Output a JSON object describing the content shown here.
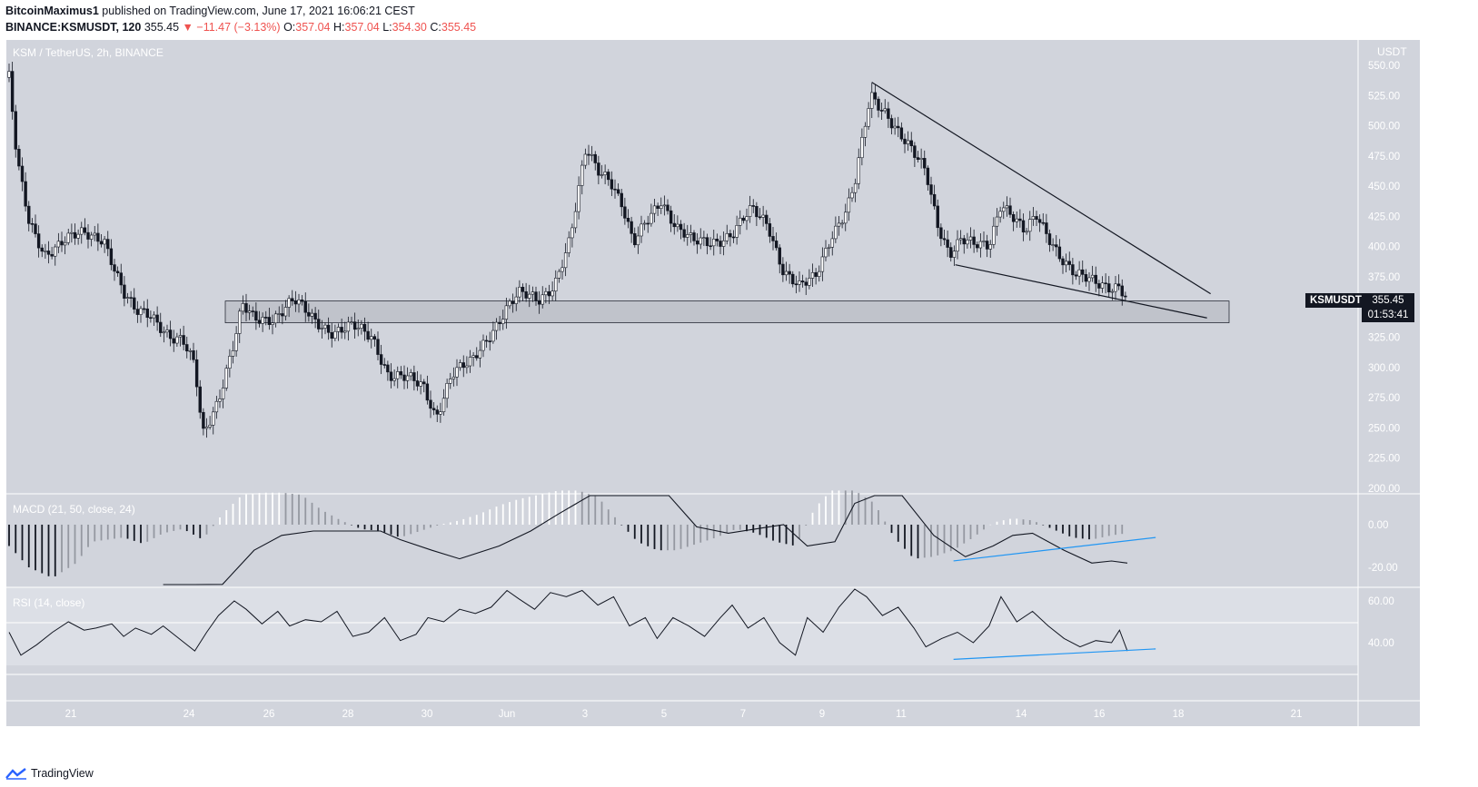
{
  "header": {
    "author": "BitcoinMaximus1",
    "published": " published on TradingView.com, June 17, 2021 16:06:21 CEST",
    "symbol": "BINANCE:KSMUSDT, 120",
    "last": "355.45",
    "change": "▼ −11.47 (−3.13%)",
    "o_label": "O:",
    "o_val": "357.04",
    "h_label": "H:",
    "h_val": "357.04",
    "l_label": "L:",
    "l_val": "354.30",
    "c_label": "C:",
    "c_val": "355.45"
  },
  "pane_labels": {
    "main": "KSM / TetherUS, 2h, BINANCE",
    "macd": "MACD (21, 50, close, 24)",
    "rsi": "RSI (14, close)"
  },
  "badges": {
    "ticker": "KSMUSDT",
    "price": "355.45",
    "countdown": "01:53:41"
  },
  "footer": {
    "brand": "TradingView"
  },
  "colors": {
    "background": "#d1d4dc",
    "candle": "#131722",
    "trendline": "#131722",
    "zone": "#b2b5be",
    "divergence": "#2196f3",
    "axis_text": "#ffffff",
    "price_change": "#ef5350"
  },
  "chart_data": [
    {
      "type": "candlestick",
      "title": "KSM / TetherUS, 2h, BINANCE",
      "ylabel": "USDT",
      "y_ticks": [
        550,
        525,
        500,
        475,
        450,
        425,
        400,
        375,
        350,
        325,
        300,
        275,
        250,
        225,
        200
      ],
      "x_ticks": [
        "21",
        "24",
        "26",
        "28",
        "30",
        "Jun",
        "3",
        "5",
        "7",
        "9",
        "11",
        "14",
        "16",
        "18",
        "21"
      ],
      "ylim": [
        195,
        555
      ],
      "close_path": {
        "x_days": [
          19.1,
          19.3,
          19.6,
          20.0,
          20.5,
          21.0,
          21.5,
          22.0,
          22.3,
          22.7,
          23.2,
          23.5,
          23.8,
          24.0,
          24.4,
          24.8,
          25.0,
          25.3,
          25.8,
          26.3,
          26.8,
          27.3,
          27.8,
          28.3,
          28.7,
          29.2,
          29.6,
          29.9,
          30.3,
          30.8,
          31.3,
          31.7,
          32.0,
          32.5,
          32.9,
          33.3,
          33.7,
          34.0,
          34.3,
          34.6,
          34.9,
          35.3,
          35.6,
          36.0,
          36.4,
          36.9,
          37.4,
          37.9,
          38.3,
          38.7,
          39.1,
          39.5,
          39.9,
          40.3,
          40.5,
          40.9,
          41.3,
          41.7,
          42.0,
          42.3,
          42.6,
          42.9,
          43.2,
          43.5,
          43.9,
          44.2,
          44.5,
          44.8,
          45.1,
          45.4,
          45.8,
          46.1,
          46.4,
          46.7,
          47.0,
          47.2,
          47.4
        ],
        "close": [
          540,
          470,
          420,
          395,
          405,
          410,
          408,
          360,
          345,
          345,
          325,
          320,
          300,
          245,
          275,
          320,
          350,
          340,
          342,
          355,
          340,
          330,
          333,
          325,
          295,
          290,
          283,
          260,
          295,
          303,
          330,
          350,
          360,
          356,
          370,
          405,
          480,
          465,
          458,
          435,
          400,
          425,
          440,
          415,
          403,
          405,
          410,
          430,
          420,
          380,
          365,
          375,
          410,
          430,
          450,
          525,
          512,
          490,
          475,
          462,
          420,
          395,
          405,
          400,
          402,
          438,
          425,
          410,
          425,
          410,
          388,
          375,
          372,
          370,
          368,
          368,
          355.45
        ]
      },
      "annotations": {
        "support_zone": [
          337,
          355
        ],
        "descending_resistance": {
          "from": [
            "Jun 10",
            536
          ],
          "to": [
            "Jun 18",
            361
          ]
        },
        "descending_support": {
          "from": [
            "Jun 12",
            385
          ],
          "to": [
            "Jun 18",
            341
          ]
        }
      },
      "last_price": 355.45
    },
    {
      "type": "bar",
      "title": "MACD (21, 50, close, 24)",
      "y_ticks": [
        0.0,
        -20.0
      ],
      "series": [
        {
          "name": "histogram",
          "x_days": [
            19.1,
            19.6,
            20.2,
            20.8,
            21.2,
            22.0,
            22.5,
            23.0,
            23.5,
            24.0,
            24.5,
            25.0,
            25.5,
            26.0,
            26.5,
            27.0,
            27.5,
            28.0,
            28.5,
            29.0,
            29.5,
            30.0,
            30.5,
            31.0,
            31.5,
            32.0,
            32.5,
            33.0,
            33.5,
            34.0,
            34.5,
            35.0,
            35.5,
            36.0,
            36.5,
            37.0,
            37.5,
            38.0,
            38.5,
            39.0,
            39.5,
            40.0,
            40.5,
            41.0,
            41.5,
            42.0,
            42.5,
            43.0,
            43.5,
            44.0,
            44.5,
            45.0,
            45.5,
            46.0,
            46.5,
            47.0,
            47.4
          ],
          "values": [
            -10,
            -20,
            -25,
            -18,
            -8,
            -6,
            -9,
            -4,
            -2,
            -7,
            5,
            14,
            15,
            15,
            14,
            7,
            2,
            -2,
            -3,
            -6,
            -3,
            0,
            2,
            5,
            9,
            12,
            14,
            16,
            16,
            13,
            2,
            -8,
            -12,
            -12,
            -9,
            -6,
            -2,
            -4,
            -8,
            -10,
            8,
            18,
            16,
            10,
            -6,
            -16,
            -15,
            -12,
            -6,
            1,
            3,
            2,
            -2,
            -6,
            -7,
            -5,
            -4
          ]
        },
        {
          "name": "signal",
          "x_days": [
            23.0,
            23.8,
            24.5,
            25.3,
            26.0,
            26.8,
            27.5,
            28.5,
            29.0,
            29.8,
            30.5,
            31.5,
            32.3,
            33.0,
            33.8,
            34.5,
            35.0,
            35.8,
            36.5,
            37.3,
            38.0,
            38.7,
            39.3,
            40.0,
            40.5,
            41.0,
            41.7,
            42.5,
            43.3,
            44.0,
            44.5,
            45.0,
            45.8,
            46.5,
            47.0,
            47.4
          ],
          "values": [
            -45,
            -35,
            -28,
            -12,
            -5,
            -3,
            -3,
            -3,
            -7,
            -12,
            -16,
            -10,
            -3,
            5,
            18,
            35,
            30,
            22,
            -1,
            -4,
            -2,
            0,
            -10,
            -8,
            10,
            30,
            28,
            -5,
            -15,
            -10,
            -5,
            -4,
            -12,
            -18,
            -17,
            -18
          ]
        }
      ],
      "divergence_line": {
        "from": [
          "Jun 12",
          -17
        ],
        "to": [
          "Jun 17",
          -6
        ]
      }
    },
    {
      "type": "line",
      "title": "RSI (14, close)",
      "y_ticks": [
        60.0,
        40.0
      ],
      "bands": [
        30,
        50
      ],
      "series": [
        {
          "name": "RSI",
          "x_days": [
            19.1,
            19.4,
            19.8,
            20.2,
            20.6,
            21.0,
            21.3,
            21.7,
            22.0,
            22.3,
            22.7,
            23.0,
            23.4,
            23.8,
            24.1,
            24.4,
            24.8,
            25.1,
            25.5,
            25.9,
            26.2,
            26.6,
            27.0,
            27.4,
            27.8,
            28.2,
            28.6,
            29.0,
            29.4,
            29.7,
            30.1,
            30.5,
            30.9,
            31.3,
            31.7,
            32.0,
            32.4,
            32.8,
            33.2,
            33.6,
            34.0,
            34.4,
            34.8,
            35.2,
            35.5,
            35.9,
            36.3,
            36.7,
            37.1,
            37.4,
            37.8,
            38.2,
            38.6,
            39.0,
            39.3,
            39.7,
            40.1,
            40.5,
            40.8,
            41.2,
            41.6,
            42.0,
            42.3,
            42.7,
            43.1,
            43.5,
            43.9,
            44.2,
            44.6,
            45.0,
            45.4,
            45.8,
            46.2,
            46.6,
            47.0,
            47.2,
            47.4
          ],
          "values": [
            45,
            34,
            39,
            45,
            50,
            46,
            47,
            49,
            43,
            47,
            44,
            48,
            42,
            36,
            45,
            53,
            60,
            56,
            49,
            55,
            48,
            51,
            50,
            55,
            43,
            45,
            52,
            41,
            44,
            52,
            50,
            56,
            54,
            57,
            65,
            61,
            56,
            64,
            62,
            65,
            58,
            62,
            48,
            52,
            42,
            52,
            48,
            43,
            52,
            58,
            47,
            52,
            40,
            34,
            52,
            45,
            57,
            66,
            62,
            53,
            57,
            47,
            38,
            42,
            45,
            40,
            48,
            62,
            50,
            55,
            48,
            42,
            38,
            41,
            40,
            46,
            36
          ]
        }
      ],
      "divergence_line": {
        "from": [
          "Jun 12",
          32
        ],
        "to": [
          "Jun 17",
          37
        ]
      }
    }
  ]
}
